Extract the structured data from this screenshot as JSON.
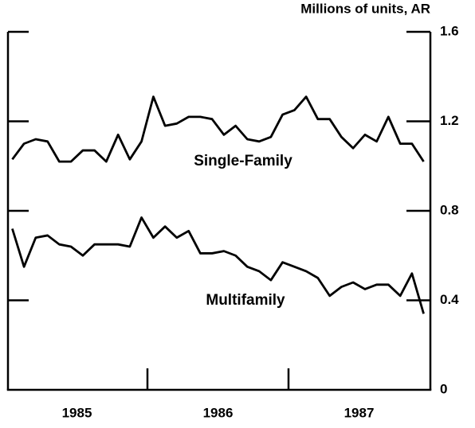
{
  "chart_data": {
    "type": "line",
    "y_axis_label": "Millions of units, AR",
    "x": [
      1985.042,
      1985.125,
      1985.208,
      1985.292,
      1985.375,
      1985.458,
      1985.542,
      1985.625,
      1985.708,
      1985.792,
      1985.875,
      1985.958,
      1986.042,
      1986.125,
      1986.208,
      1986.292,
      1986.375,
      1986.458,
      1986.542,
      1986.625,
      1986.708,
      1986.792,
      1986.875,
      1986.958,
      1987.042,
      1987.125,
      1987.208,
      1987.292,
      1987.375,
      1987.458,
      1987.542,
      1987.625,
      1987.708,
      1987.792,
      1987.875,
      1987.958
    ],
    "series": [
      {
        "name": "Single-Family",
        "color": "#000000",
        "values": [
          1.03,
          1.1,
          1.12,
          1.11,
          1.02,
          1.02,
          1.07,
          1.07,
          1.02,
          1.14,
          1.03,
          1.11,
          1.31,
          1.18,
          1.19,
          1.22,
          1.22,
          1.21,
          1.14,
          1.18,
          1.12,
          1.11,
          1.13,
          1.23,
          1.25,
          1.31,
          1.21,
          1.21,
          1.13,
          1.08,
          1.14,
          1.11,
          1.22,
          1.1,
          1.1,
          1.02
        ]
      },
      {
        "name": "Multifamily",
        "color": "#000000",
        "values": [
          0.72,
          0.55,
          0.68,
          0.69,
          0.65,
          0.64,
          0.6,
          0.65,
          0.65,
          0.65,
          0.64,
          0.77,
          0.68,
          0.73,
          0.68,
          0.71,
          0.61,
          0.61,
          0.62,
          0.6,
          0.55,
          0.53,
          0.49,
          0.57,
          0.55,
          0.53,
          0.5,
          0.42,
          0.46,
          0.48,
          0.45,
          0.47,
          0.47,
          0.42,
          0.52,
          0.34
        ]
      }
    ],
    "xlim": [
      1985,
      1988
    ],
    "xticks": [
      {
        "value": 1985.5,
        "label": "1985"
      },
      {
        "value": 1986.5,
        "label": "1986"
      },
      {
        "value": 1987.5,
        "label": "1987"
      }
    ],
    "x_boundaries": [
      1986,
      1987
    ],
    "ylim": [
      0,
      1.6
    ],
    "yticks": [
      0,
      0.4,
      0.8,
      1.2,
      1.6
    ],
    "grid": false
  }
}
